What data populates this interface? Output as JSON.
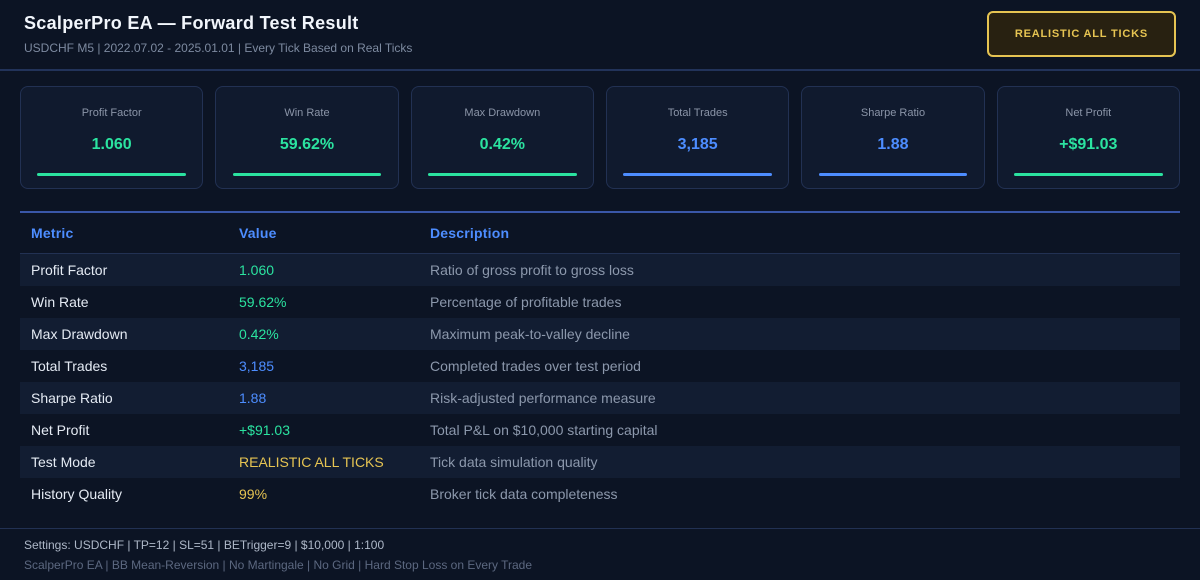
{
  "colors": {
    "green": "#2be3a0",
    "blue": "#4d8dff",
    "gold": "#e6c452"
  },
  "header": {
    "title": "ScalperPro EA — Forward Test Result",
    "subtitle": "USDCHF M5 | 2022.07.02 - 2025.01.01 | Every Tick Based on Real Ticks",
    "badge_label": "REALISTIC ALL TICKS"
  },
  "stats": [
    {
      "label": "Profit Factor",
      "value": "1.060",
      "color": "green"
    },
    {
      "label": "Win Rate",
      "value": "59.62%",
      "color": "green"
    },
    {
      "label": "Max Drawdown",
      "value": "0.42%",
      "color": "green"
    },
    {
      "label": "Total Trades",
      "value": "3,185",
      "color": "blue"
    },
    {
      "label": "Sharpe Ratio",
      "value": "1.88",
      "color": "blue"
    },
    {
      "label": "Net Profit",
      "value": "+$91.03",
      "color": "green"
    }
  ],
  "table": {
    "headers": {
      "metric": "Metric",
      "value": "Value",
      "description": "Description"
    },
    "rows": [
      {
        "metric": "Profit Factor",
        "value": "1.060",
        "color": "green",
        "description": "Ratio of gross profit to gross loss"
      },
      {
        "metric": "Win Rate",
        "value": "59.62%",
        "color": "green",
        "description": "Percentage of profitable trades"
      },
      {
        "metric": "Max Drawdown",
        "value": "0.42%",
        "color": "green",
        "description": "Maximum peak-to-valley decline"
      },
      {
        "metric": "Total Trades",
        "value": "3,185",
        "color": "blue",
        "description": "Completed trades over test period"
      },
      {
        "metric": "Sharpe Ratio",
        "value": "1.88",
        "color": "blue",
        "description": "Risk-adjusted performance measure"
      },
      {
        "metric": "Net Profit",
        "value": "+$91.03",
        "color": "green",
        "description": "Total P&L on $10,000 starting capital"
      },
      {
        "metric": "Test Mode",
        "value": "REALISTIC ALL TICKS",
        "color": "gold",
        "description": "Tick data simulation quality"
      },
      {
        "metric": "History Quality",
        "value": "99%",
        "color": "gold",
        "description": "Broker tick data completeness"
      }
    ]
  },
  "footer": {
    "settings": "Settings: USDCHF | TP=12 | SL=51 | BETrigger=9 | $10,000 | 1:100",
    "tagline": "ScalperPro EA  |  BB Mean-Reversion  |  No Martingale  |  No Grid  |  Hard Stop Loss on Every Trade"
  }
}
